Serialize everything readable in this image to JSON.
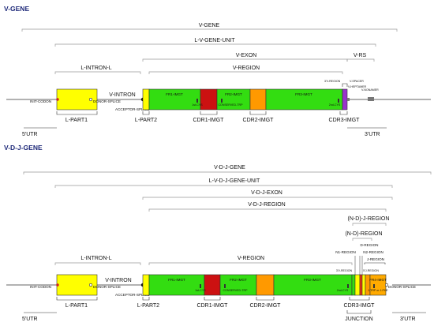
{
  "colors": {
    "leader": "#ffff00",
    "framework": "#33dd11",
    "cdr1": "#cc1111",
    "cdr2": "#ff9900",
    "v_rs": "#9933cc",
    "n_region": "#ffff00",
    "d_region": "#ee3311",
    "j_region": "#ff9900",
    "fr4": "#ffaa00",
    "dot": "#cc2222",
    "section_title": "#1f2a7a"
  },
  "v_gene": {
    "title": "V-GENE",
    "spans": {
      "v_gene": "V-GENE",
      "l_v_gene_unit": "L-V-GENE-UNIT",
      "v_exon": "V-EXON",
      "l_intron_l": "L-INTRON-L",
      "v_region": "V-REGION",
      "v_rs": "V-RS"
    },
    "labels": {
      "init_codon": "INIT-CODON",
      "v_intron": "V-INTRON",
      "donor_splice": "DONOR-SPLICE",
      "acceptor_splice": "ACCEPTOR-SPLICE",
      "fr1": "FR1-IMGT",
      "fr2": "FR2-IMGT",
      "fr3": "FR3-IMGT",
      "cys1": "1st-CYS",
      "conserved_trp": "CONSERVED-TRP",
      "cys2": "2nd-CYS",
      "v3_region": "3'V-REGION",
      "v_spacer": "V-SPACER",
      "v_heptamer": "V-HEPTAMER",
      "v_nonamer": "V-NONAMER",
      "l_part1": "L-PART1",
      "l_part2": "L-PART2",
      "cdr1": "CDR1-IMGT",
      "cdr2": "CDR2-IMGT",
      "cdr3": "CDR3-IMGT",
      "utr5": "5'UTR",
      "utr3": "3'UTR"
    }
  },
  "vdj_gene": {
    "title": "V-D-J-GENE",
    "spans": {
      "v_d_j_gene": "V-D-J-GENE",
      "l_v_d_j_gene_unit": "L-V-D-J-GENE-UNIT",
      "v_d_j_exon": "V-D-J-EXON",
      "v_d_j_region": "V-D-J-REGION",
      "n_d_j_region": "(N-D)-J-REGION",
      "n_d_region": "(N-D)-REGION",
      "l_intron_l": "L-INTRON-L",
      "v_region": "V-REGION",
      "d_region": "D-REGION",
      "n1_region": "N1-REGION",
      "n2_region": "N2-REGION",
      "j_region": "J-REGION"
    },
    "labels": {
      "init_codon": "INIT-CODON",
      "v_intron": "V-INTRON",
      "donor_splice": "DONOR-SPLICE",
      "acceptor_splice": "ACCEPTOR-SPLICE",
      "fr1": "FR1-IMGT",
      "fr2": "FR2-IMGT",
      "fr3": "FR3-IMGT",
      "fr4": "FR4-IMGT",
      "cys1": "1st-CYS",
      "conserved_trp": "CONSERVED-TRP",
      "cys2": "2nd-CYS",
      "j_trp": "J-TRP or J-PHE",
      "v3_region": "3'V-REGION",
      "j5_region": "5'J-REGION",
      "donor_splice_right": "DONOR-SPLICE",
      "l_part1": "L-PART1",
      "l_part2": "L-PART2",
      "cdr1": "CDR1-IMGT",
      "cdr2": "CDR2-IMGT",
      "cdr3": "CDR3-IMGT",
      "junction": "JUNCTION",
      "utr5": "5'UTR",
      "utr3": "3'UTR"
    }
  }
}
